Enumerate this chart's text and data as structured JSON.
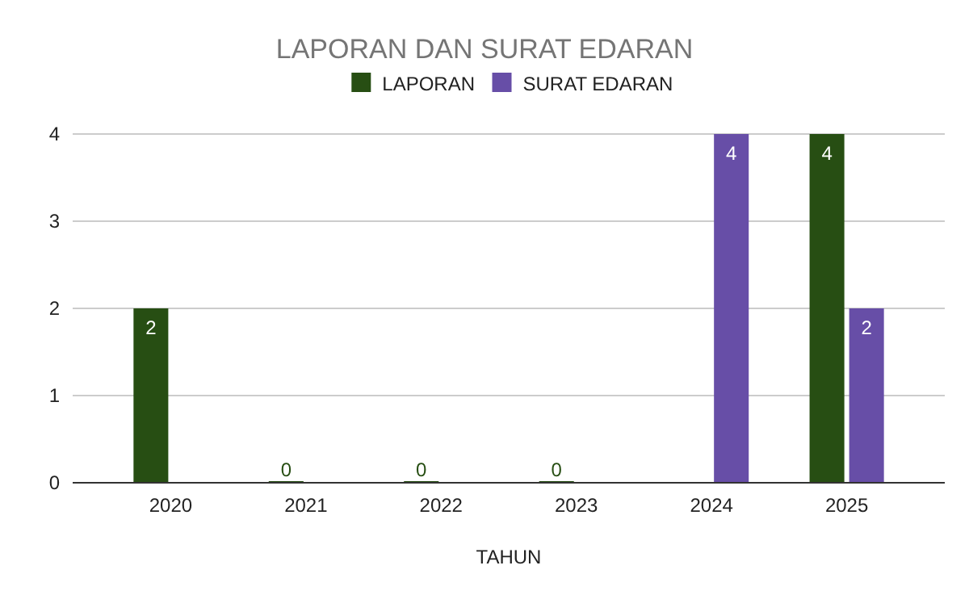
{
  "chart_data": {
    "type": "bar",
    "title": "LAPORAN DAN SURAT EDARAN",
    "xlabel": "TAHUN",
    "categories": [
      "2020",
      "2021",
      "2022",
      "2023",
      "2024",
      "2025"
    ],
    "series": [
      {
        "name": "LAPORAN",
        "color": "#274e13",
        "values": [
          2,
          0,
          0,
          0,
          null,
          4
        ]
      },
      {
        "name": "SURAT EDARAN",
        "color": "#674ea7",
        "values": [
          null,
          null,
          null,
          null,
          4,
          2
        ]
      }
    ],
    "ylim": [
      0,
      4
    ],
    "yticks": [
      0,
      1,
      2,
      3,
      4
    ],
    "grid": "y",
    "legend": "top",
    "data_labels": true
  }
}
